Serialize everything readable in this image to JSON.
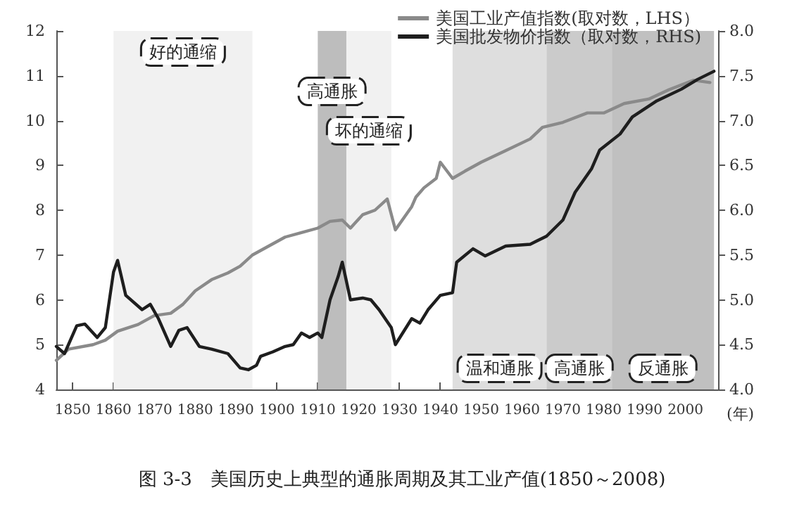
{
  "chart_data": {
    "type": "line",
    "title": "图 3-3　美国历史上典型的通胀周期及其工业产值(1850～2008)",
    "xlabel": "(年)",
    "series": [
      {
        "name": "美国工业产值指数(取对数，LHS）",
        "color": "#8a8a8a",
        "x": [
          1846,
          1849,
          1855,
          1858,
          1861,
          1866,
          1870,
          1874,
          1877,
          1880,
          1884,
          1888,
          1891,
          1894,
          1898,
          1902,
          1906,
          1910,
          1913,
          1916,
          1918,
          1921,
          1924,
          1927,
          1929,
          1933,
          1934,
          1936,
          1939,
          1940,
          1943,
          1946,
          1950,
          1956,
          1962,
          1965,
          1970,
          1976,
          1980,
          1985,
          1991,
          1996,
          2002,
          2006
        ],
        "values": [
          4.65,
          4.9,
          5.0,
          5.1,
          5.3,
          5.45,
          5.65,
          5.7,
          5.9,
          6.2,
          6.45,
          6.6,
          6.75,
          7.0,
          7.2,
          7.4,
          7.5,
          7.6,
          7.75,
          7.78,
          7.6,
          7.9,
          8.0,
          8.25,
          7.56,
          8.08,
          8.29,
          8.5,
          8.71,
          9.07,
          8.71,
          8.87,
          9.07,
          9.33,
          9.59,
          9.85,
          9.96,
          10.17,
          10.17,
          10.38,
          10.48,
          10.69,
          10.9,
          10.85
        ]
      },
      {
        "name": "美国批发物价指数（取对数，RHS)",
        "color": "#1e1e1e",
        "axis": "y2",
        "x": [
          1846,
          1848,
          1851,
          1853,
          1856,
          1858,
          1860,
          1861,
          1863,
          1867,
          1869,
          1871,
          1874,
          1876,
          1878,
          1881,
          1884,
          1888,
          1891,
          1893,
          1895,
          1896,
          1899,
          1902,
          1904,
          1906,
          1908,
          1910,
          1911,
          1913,
          1915,
          1916,
          1918,
          1921,
          1923,
          1925,
          1928,
          1929,
          1933,
          1935,
          1937,
          1940,
          1943,
          1944,
          1948,
          1951,
          1956,
          1962,
          1966,
          1970,
          1973,
          1977,
          1979,
          1984,
          1987,
          1993,
          1999,
          2003,
          2007
        ],
        "values": [
          4.48,
          4.4,
          4.71,
          4.73,
          4.58,
          4.69,
          5.31,
          5.44,
          5.05,
          4.89,
          4.95,
          4.79,
          4.48,
          4.66,
          4.69,
          4.48,
          4.45,
          4.4,
          4.24,
          4.22,
          4.27,
          4.37,
          4.42,
          4.48,
          4.5,
          4.63,
          4.58,
          4.63,
          4.58,
          5.0,
          5.26,
          5.42,
          5.0,
          5.02,
          5.0,
          4.89,
          4.69,
          4.5,
          4.79,
          4.74,
          4.89,
          5.05,
          5.08,
          5.42,
          5.57,
          5.49,
          5.6,
          5.62,
          5.71,
          5.89,
          6.2,
          6.46,
          6.67,
          6.85,
          7.04,
          7.22,
          7.35,
          7.46,
          7.55
        ]
      }
    ],
    "xlim": [
      1846,
      2008
    ],
    "xticks": [
      1850,
      1860,
      1870,
      1880,
      1890,
      1900,
      1910,
      1920,
      1930,
      1940,
      1950,
      1960,
      1970,
      1980,
      1990,
      2000
    ],
    "ylim": [
      4,
      12
    ],
    "yticks": [
      4,
      5,
      6,
      7,
      8,
      9,
      10,
      11,
      12
    ],
    "y2lim": [
      4,
      8
    ],
    "y2ticks": [
      {
        "value": 4,
        "label": "4.0"
      },
      4.5,
      {
        "value": 5,
        "label": "5.0"
      },
      5.5,
      {
        "value": 6,
        "label": "6.0"
      },
      6.5,
      {
        "value": 7,
        "label": "7.0"
      },
      7.5,
      {
        "value": 8,
        "label": "8.0"
      }
    ],
    "bands": [
      {
        "axis": "x",
        "from": 1860,
        "to": 1894,
        "color": "#f1f1f1",
        "label": "好的通缩"
      },
      {
        "axis": "x",
        "from": 1910,
        "to": 1917,
        "color": "#bdbdbd",
        "label": "高通胀"
      },
      {
        "axis": "x",
        "from": 1917,
        "to": 1928,
        "color": "#f1f1f1",
        "label": "坏的通缩"
      },
      {
        "axis": "x",
        "from": 1943,
        "to": 1966,
        "color": "#dedede",
        "label": "温和通胀"
      },
      {
        "axis": "x",
        "from": 1966,
        "to": 1982,
        "color": "#cbcbcb",
        "label": "高通胀"
      },
      {
        "axis": "x",
        "from": 1982,
        "to": 2007,
        "color": "#c0c0c0",
        "label": "反通胀"
      }
    ],
    "legend": "top right",
    "grid": false,
    "marker": "none",
    "line_style": "solid"
  }
}
